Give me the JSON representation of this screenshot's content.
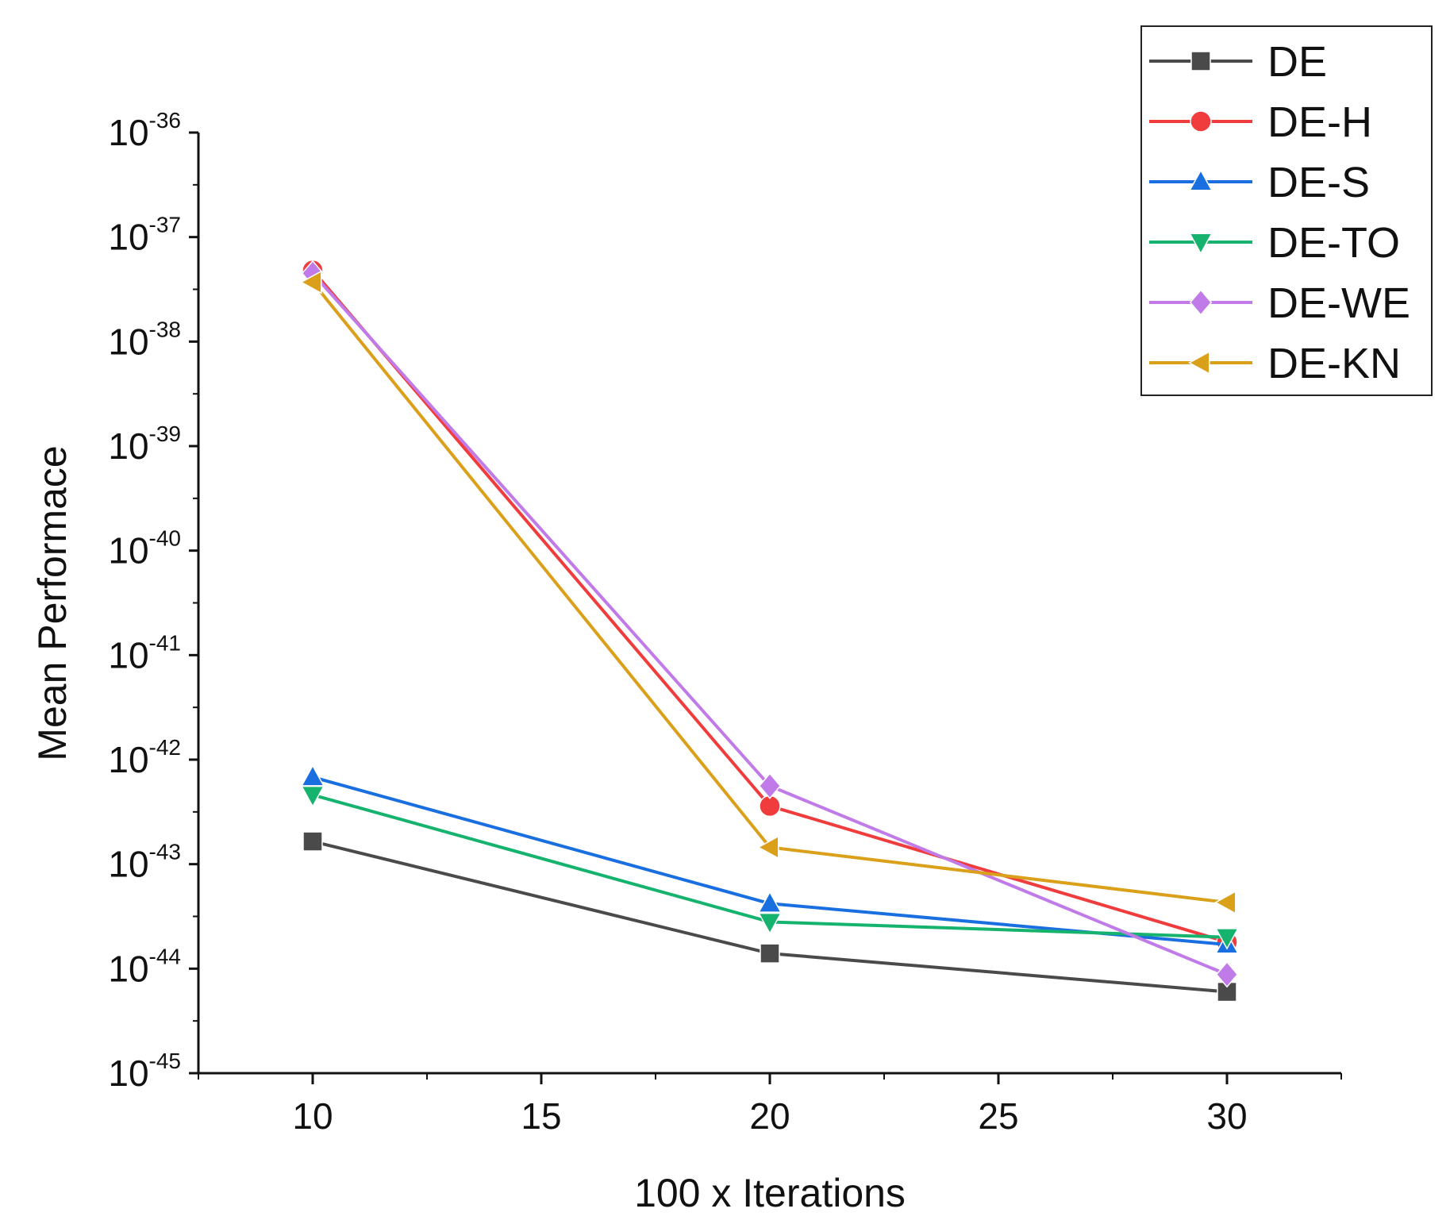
{
  "chart_data": {
    "type": "line",
    "title": "",
    "xlabel": "100 x Iterations",
    "ylabel": "Mean Performace",
    "y_scale": "log",
    "x": [
      10,
      20,
      30
    ],
    "xlim": [
      7.5,
      32.5
    ],
    "xticks": [
      10,
      15,
      20,
      25,
      30
    ],
    "xtick_labels": [
      "10",
      "15",
      "20",
      "25",
      "30"
    ],
    "ylim_exp": [
      -45,
      -36
    ],
    "yticks_exp": [
      -45,
      -44,
      -43,
      -42,
      -41,
      -40,
      -39,
      -38,
      -37,
      -36
    ],
    "ytick_base": "10",
    "ytick_exp_labels": [
      "-45",
      "-44",
      "-43",
      "-42",
      "-41",
      "-40",
      "-39",
      "-38",
      "-37",
      "-36"
    ],
    "legend_position": "top-right",
    "series": [
      {
        "name": "DE",
        "marker": "square",
        "color": "#4a4a4a",
        "values": [
          1.65e-43,
          1.4e-44,
          6e-45
        ]
      },
      {
        "name": "DE-H",
        "marker": "circle",
        "color": "#f03c3c",
        "values": [
          4.8e-38,
          3.6e-43,
          1.8e-44
        ]
      },
      {
        "name": "DE-S",
        "marker": "triangle-up",
        "color": "#1a6fe0",
        "values": [
          6.8e-43,
          4.2e-44,
          1.7e-44
        ]
      },
      {
        "name": "DE-TO",
        "marker": "triangle-down",
        "color": "#16b36e",
        "values": [
          4.6e-43,
          2.8e-44,
          2e-44
        ]
      },
      {
        "name": "DE-WE",
        "marker": "diamond",
        "color": "#c07be8",
        "values": [
          4.5e-38,
          5.6e-43,
          8.8e-45
        ]
      },
      {
        "name": "DE-KN",
        "marker": "triangle-left",
        "color": "#dba01a",
        "values": [
          3.7e-38,
          1.45e-43,
          4.3e-44
        ]
      }
    ]
  }
}
